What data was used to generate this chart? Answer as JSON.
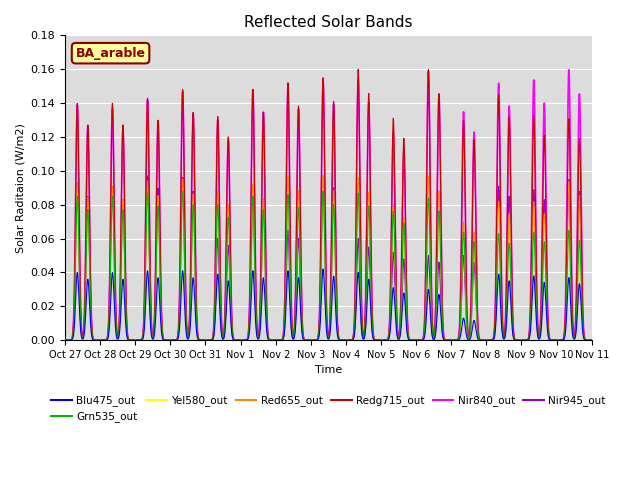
{
  "title": "Reflected Solar Bands",
  "xlabel": "Time",
  "ylabel": "Solar Raditaion (W/m2)",
  "ylim": [
    0,
    0.18
  ],
  "n_days": 15,
  "annotation_text": "BA_arable",
  "legend_entries": [
    {
      "label": "Blu475_out",
      "color": "#0000ff"
    },
    {
      "label": "Grn535_out",
      "color": "#00bb00"
    },
    {
      "label": "Yel580_out",
      "color": "#ffff00"
    },
    {
      "label": "Red655_out",
      "color": "#ff8800"
    },
    {
      "label": "Redg715_out",
      "color": "#cc0000"
    },
    {
      "label": "Nir840_out",
      "color": "#ff00ff"
    },
    {
      "label": "Nir945_out",
      "color": "#9900cc"
    }
  ],
  "tick_labels": [
    "Oct 27",
    "Oct 28",
    "Oct 29",
    "Oct 30",
    "Oct 31",
    "Nov 1",
    "Nov 2",
    "Nov 3",
    "Nov 4",
    "Nov 5",
    "Nov 6",
    "Nov 7",
    "Nov 8",
    "Nov 9",
    "Nov 10",
    "Nov 11"
  ],
  "background_color": "#dcdcdc",
  "day_peaks_blu": [
    0.04,
    0.04,
    0.041,
    0.041,
    0.039,
    0.041,
    0.041,
    0.042,
    0.04,
    0.031,
    0.03,
    0.013,
    0.039,
    0.038,
    0.037
  ],
  "day_peaks_grn": [
    0.085,
    0.085,
    0.087,
    0.088,
    0.08,
    0.085,
    0.086,
    0.088,
    0.087,
    0.076,
    0.084,
    0.064,
    0.063,
    0.064,
    0.065
  ],
  "day_peaks_yel": [
    0.088,
    0.087,
    0.089,
    0.09,
    0.082,
    0.087,
    0.088,
    0.09,
    0.09,
    0.078,
    0.083,
    0.064,
    0.079,
    0.079,
    0.065
  ],
  "day_peaks_red": [
    0.093,
    0.091,
    0.094,
    0.095,
    0.088,
    0.092,
    0.097,
    0.097,
    0.096,
    0.08,
    0.097,
    0.07,
    0.082,
    0.082,
    0.094
  ],
  "day_peaks_redg": [
    0.14,
    0.14,
    0.143,
    0.148,
    0.132,
    0.148,
    0.152,
    0.155,
    0.16,
    0.131,
    0.16,
    0.13,
    0.145,
    0.133,
    0.131
  ],
  "day_peaks_nir840": [
    0.139,
    0.137,
    0.142,
    0.147,
    0.13,
    0.148,
    0.15,
    0.153,
    0.154,
    0.122,
    0.159,
    0.135,
    0.152,
    0.154,
    0.16
  ],
  "day_peaks_nir945_am": [
    0.093,
    0.091,
    0.097,
    0.096,
    0.06,
    0.084,
    0.065,
    0.097,
    0.06,
    0.052,
    0.05,
    0.05,
    0.091,
    0.089,
    0.095
  ],
  "day_peaks_nir945_pm": [
    0.085,
    0.083,
    0.09,
    0.088,
    0.056,
    0.079,
    0.06,
    0.09,
    0.055,
    0.048,
    0.046,
    0.046,
    0.085,
    0.083,
    0.088
  ]
}
